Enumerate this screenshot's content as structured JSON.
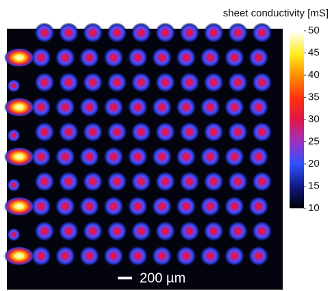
{
  "colorbar": {
    "label": "sheet conductivity [mS]",
    "lim": [
      10,
      50
    ],
    "ticks": [
      10,
      15,
      20,
      25,
      30,
      35,
      40,
      45,
      50
    ]
  },
  "scale_bar": {
    "label": "200 µm"
  }
}
